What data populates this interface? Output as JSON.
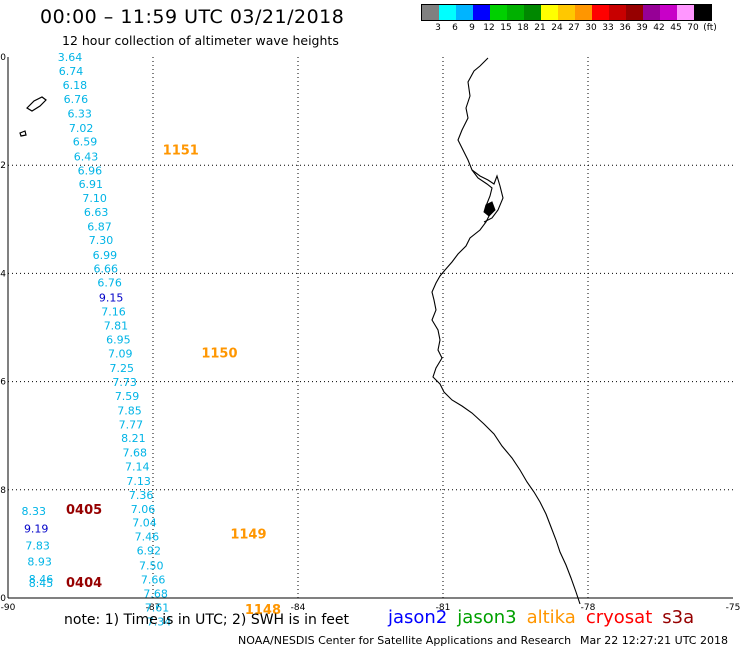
{
  "header": {
    "title": "00:00 – 11:59 UTC 03/21/2018",
    "subtitle": "12 hour collection of altimeter wave heights"
  },
  "legend": {
    "colors": [
      "#808080",
      "#00ffff",
      "#00b4ff",
      "#0000ff",
      "#00d000",
      "#00b000",
      "#008800",
      "#ffff00",
      "#ffc800",
      "#ff9600",
      "#ff0000",
      "#c80000",
      "#960000",
      "#960096",
      "#c800c8",
      "#ff96ff",
      "#000000"
    ],
    "labels": [
      "3",
      "6",
      "9",
      "12",
      "15",
      "18",
      "21",
      "24",
      "27",
      "30",
      "33",
      "36",
      "39",
      "42",
      "45",
      "70",
      "(ft)"
    ]
  },
  "axes": {
    "lat_labels": [
      "0",
      "-2",
      "-4",
      "-6",
      "-8",
      "-10"
    ],
    "lon_labels": [
      "-90",
      "-87",
      "-84",
      "-81",
      "-78",
      "-75"
    ]
  },
  "map": {
    "region": "eastern Pacific off Ecuador and northern Peru",
    "grid": "dotted",
    "land_color": "#000000",
    "colors": {
      "cyan": "#00b4e6",
      "blue": "#0000c8",
      "orange": "#ff9600",
      "darkred": "#960000"
    }
  },
  "chart_data": {
    "type": "scatter",
    "xlabel": "",
    "ylabel": "",
    "xlim": [
      -90,
      -75
    ],
    "ylim": [
      -10,
      0
    ],
    "tracks": [
      {
        "pass": "1151",
        "pass_lat": -1.8,
        "pass_lon": -86.8,
        "pass_color": "orange",
        "points": [
          {
            "lat": -0.07,
            "lon": -88.97,
            "v": "3.64",
            "c": "cyan"
          },
          {
            "lat": -0.33,
            "lon": -88.95,
            "v": "6.74",
            "c": "cyan"
          },
          {
            "lat": -0.59,
            "lon": -88.87,
            "v": "6.18",
            "c": "cyan"
          },
          {
            "lat": -0.85,
            "lon": -88.85,
            "v": "6.76",
            "c": "cyan"
          },
          {
            "lat": -1.12,
            "lon": -88.77,
            "v": "6.33",
            "c": "cyan"
          },
          {
            "lat": -1.39,
            "lon": -88.74,
            "v": "7.02",
            "c": "cyan"
          },
          {
            "lat": -1.64,
            "lon": -88.66,
            "v": "6.59",
            "c": "cyan"
          },
          {
            "lat": -1.91,
            "lon": -88.64,
            "v": "6.43",
            "c": "cyan"
          },
          {
            "lat": -2.17,
            "lon": -88.56,
            "v": "6.96",
            "c": "cyan"
          },
          {
            "lat": -2.42,
            "lon": -88.54,
            "v": "6.91",
            "c": "cyan"
          },
          {
            "lat": -2.68,
            "lon": -88.46,
            "v": "7.10",
            "c": "cyan"
          },
          {
            "lat": -2.94,
            "lon": -88.43,
            "v": "6.63",
            "c": "cyan"
          },
          {
            "lat": -3.21,
            "lon": -88.36,
            "v": "6.87",
            "c": "cyan"
          },
          {
            "lat": -3.46,
            "lon": -88.33,
            "v": "7.30",
            "c": "cyan"
          },
          {
            "lat": -3.73,
            "lon": -88.25,
            "v": "6.99",
            "c": "cyan"
          },
          {
            "lat": -3.98,
            "lon": -88.23,
            "v": "6.66",
            "c": "cyan"
          },
          {
            "lat": -4.24,
            "lon": -88.15,
            "v": "6.76",
            "c": "cyan"
          },
          {
            "lat": -4.52,
            "lon": -88.12,
            "v": "9.15",
            "c": "blue"
          }
        ]
      },
      {
        "pass": "1150",
        "pass_lat": -5.55,
        "pass_lon": -86.0,
        "pass_color": "orange",
        "points": [
          {
            "lat": -4.78,
            "lon": -88.07,
            "v": "7.16",
            "c": "cyan"
          },
          {
            "lat": -5.04,
            "lon": -88.02,
            "v": "7.81",
            "c": "cyan"
          },
          {
            "lat": -5.3,
            "lon": -87.97,
            "v": "6.95",
            "c": "cyan"
          },
          {
            "lat": -5.55,
            "lon": -87.93,
            "v": "7.09",
            "c": "cyan"
          },
          {
            "lat": -5.82,
            "lon": -87.9,
            "v": "7.25",
            "c": "cyan"
          },
          {
            "lat": -6.08,
            "lon": -87.84,
            "v": "7.73",
            "c": "cyan"
          },
          {
            "lat": -6.34,
            "lon": -87.79,
            "v": "7.59",
            "c": "cyan"
          },
          {
            "lat": -6.61,
            "lon": -87.74,
            "v": "7.85",
            "c": "cyan"
          },
          {
            "lat": -6.87,
            "lon": -87.71,
            "v": "7.77",
            "c": "cyan"
          },
          {
            "lat": -7.12,
            "lon": -87.66,
            "v": "8.21",
            "c": "cyan"
          },
          {
            "lat": -7.38,
            "lon": -87.63,
            "v": "7.68",
            "c": "cyan"
          },
          {
            "lat": -7.64,
            "lon": -87.58,
            "v": "7.14",
            "c": "cyan"
          },
          {
            "lat": -7.91,
            "lon": -87.55,
            "v": "7.13",
            "c": "cyan"
          },
          {
            "lat": -8.17,
            "lon": -87.5,
            "v": "7.36",
            "c": "cyan"
          },
          {
            "lat": -8.43,
            "lon": -87.46,
            "v": "7.06",
            "c": "cyan"
          }
        ]
      },
      {
        "pass": "1149",
        "pass_lat": -8.9,
        "pass_lon": -85.4,
        "pass_color": "orange",
        "points": [
          {
            "lat": -8.68,
            "lon": -87.43,
            "v": "7.04",
            "c": "cyan"
          },
          {
            "lat": -8.94,
            "lon": -87.38,
            "v": "7.46",
            "c": "cyan"
          },
          {
            "lat": -9.2,
            "lon": -87.34,
            "v": "6.92",
            "c": "cyan"
          },
          {
            "lat": -9.47,
            "lon": -87.29,
            "v": "7.50",
            "c": "cyan"
          },
          {
            "lat": -9.73,
            "lon": -87.25,
            "v": "7.66",
            "c": "cyan"
          },
          {
            "lat": -9.99,
            "lon": -87.2,
            "v": "7.68",
            "c": "cyan"
          }
        ]
      },
      {
        "pass": "1148",
        "pass_lat": -10.3,
        "pass_lon": -85.1,
        "pass_color": "orange",
        "points": [
          {
            "lat": -10.25,
            "lon": -87.17,
            "v": "7.61",
            "c": "cyan"
          },
          {
            "lat": -10.51,
            "lon": -87.13,
            "v": "7.34",
            "c": "cyan"
          }
        ]
      },
      {
        "pass": "0405",
        "pass_lat": -8.45,
        "pass_lon": -88.8,
        "pass_color": "darkred",
        "points": [
          {
            "lat": -8.47,
            "lon": -89.72,
            "v": "8.33",
            "c": "cyan"
          },
          {
            "lat": -8.79,
            "lon": -89.67,
            "v": "9.19",
            "c": "blue"
          },
          {
            "lat": -9.1,
            "lon": -89.64,
            "v": "7.83",
            "c": "cyan"
          },
          {
            "lat": -9.4,
            "lon": -89.6,
            "v": "8.93",
            "c": "cyan"
          },
          {
            "lat": -9.72,
            "lon": -89.57,
            "v": "8.46",
            "c": "cyan"
          }
        ]
      },
      {
        "pass": "0404",
        "pass_lat": -9.8,
        "pass_lon": -88.8,
        "pass_color": "darkred",
        "points": [
          {
            "lat": -9.8,
            "lon": -89.57,
            "v": "8.45",
            "c": "cyan"
          }
        ]
      }
    ]
  },
  "footer": {
    "note": "note: 1) Time is in UTC; 2) SWH is in feet",
    "satellites": [
      {
        "name": "jason2",
        "color": "#0000ff"
      },
      {
        "name": "jason3",
        "color": "#00a000"
      },
      {
        "name": "altika",
        "color": "#ff9600"
      },
      {
        "name": "cryosat",
        "color": "#ff0000"
      },
      {
        "name": "s3a",
        "color": "#960000"
      }
    ],
    "credit": "NOAA/NESDIS Center for Satellite Applications and Research",
    "timestamp": "Mar 22 12:27:21 UTC 2018"
  }
}
